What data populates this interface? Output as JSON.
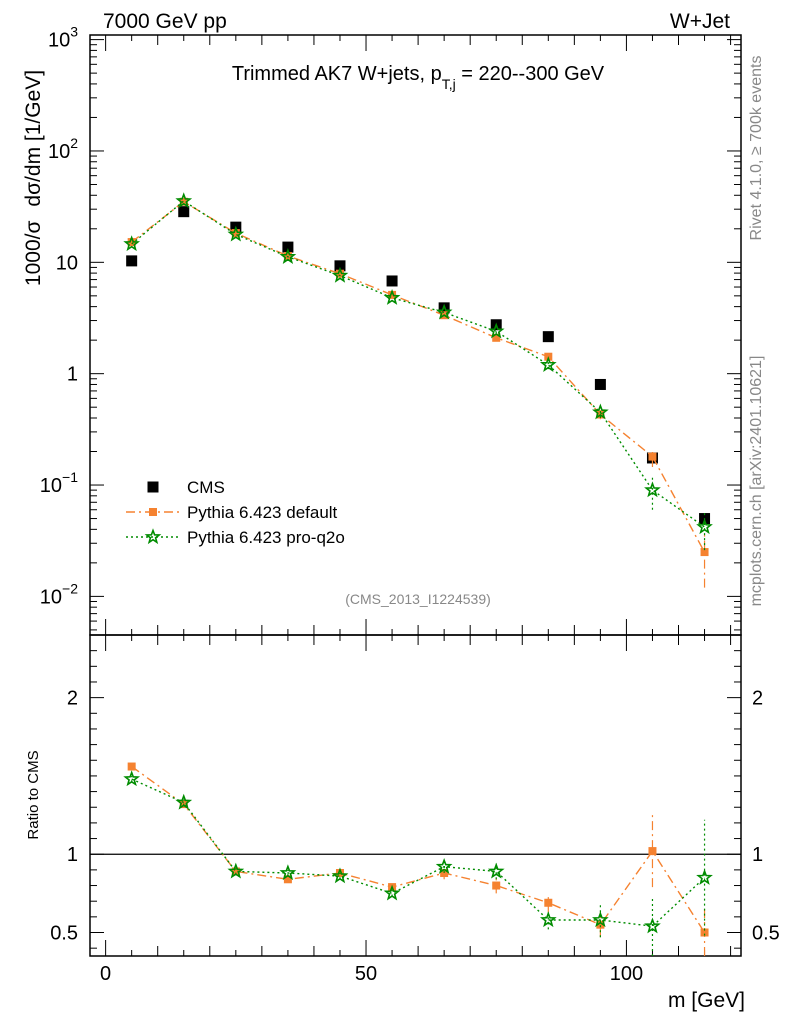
{
  "header": {
    "left": "7000 GeV pp",
    "right": "W+Jet"
  },
  "chart_data": {
    "type": "scatter",
    "title": "Trimmed AK7 W+jets, p",
    "title_sub": "T,j",
    "title_tail": " = 220--300 GeV",
    "analysis_id": "(CMS_2013_I1224539)",
    "side_text_top": "Rivet 4.1.0, ≥ 700k events",
    "side_text_bottom": "mcplots.cern.ch [arXiv:2401.10621]",
    "ylabel": {
      "prefix": "1000/σ",
      "mid": "dσ",
      "suffix": "/dm [1/GeV]"
    },
    "ratio_ylabel": "Ratio to CMS",
    "xlabel": "m [GeV]",
    "xlim": [
      -3,
      122
    ],
    "ylim_main": [
      0.0045,
      1100
    ],
    "ylim_ratio": [
      0.35,
      2.4
    ],
    "main_yticks": [
      {
        "value": 1000,
        "base": "10",
        "exp": "3"
      },
      {
        "value": 100,
        "base": "10",
        "exp": "2"
      },
      {
        "value": 10,
        "base": "10",
        "exp": ""
      },
      {
        "value": 1,
        "base": "1",
        "exp": ""
      },
      {
        "value": 0.1,
        "base": "10",
        "exp": "−1"
      },
      {
        "value": 0.01,
        "base": "10",
        "exp": "−2"
      }
    ],
    "ratio_yticks": [
      {
        "value": 2,
        "label": "2"
      },
      {
        "value": 1,
        "label": "1"
      },
      {
        "value": 0.5,
        "label": "0.5"
      }
    ],
    "xticks": [
      {
        "value": 0,
        "label": "0"
      },
      {
        "value": 50,
        "label": "50"
      },
      {
        "value": 100,
        "label": "100"
      }
    ],
    "x": [
      5,
      15,
      25,
      35,
      45,
      55,
      65,
      75,
      85,
      95,
      105,
      115
    ],
    "series": [
      {
        "name": "CMS",
        "color": "#000000",
        "marker": "square",
        "line": "none",
        "values": [
          10.3,
          28.5,
          20.7,
          13.7,
          9.3,
          6.8,
          3.9,
          2.75,
          2.15,
          0.8,
          0.175,
          0.05
        ],
        "ratio": [
          1,
          1,
          1,
          1,
          1,
          1,
          1,
          1,
          1,
          1,
          1,
          1
        ]
      },
      {
        "name": "Pythia 6.423 default",
        "color": "#f58230",
        "marker": "square",
        "line": "dashdot",
        "values": [
          15.2,
          35,
          18.3,
          11.4,
          7.9,
          5.1,
          3.35,
          2.1,
          1.42,
          0.43,
          0.18,
          0.025
        ],
        "errors": [
          0,
          0,
          0,
          0,
          0,
          0,
          0,
          0.1,
          0.1,
          0.04,
          0.035,
          0.013
        ],
        "ratio": [
          1.56,
          1.32,
          0.89,
          0.84,
          0.88,
          0.79,
          0.88,
          0.8,
          0.69,
          0.55,
          1.02,
          0.5
        ],
        "ratio_errors": [
          0.02,
          0.02,
          0.02,
          0.02,
          0.02,
          0.02,
          0.04,
          0.05,
          0.06,
          0.08,
          0.23,
          0.17
        ]
      },
      {
        "name": "Pythia 6.423 pro-q2o",
        "color": "#008c00",
        "marker": "star",
        "line": "dotted",
        "values": [
          14.6,
          35.5,
          17.8,
          11.2,
          7.6,
          4.8,
          3.55,
          2.4,
          1.2,
          0.45,
          0.09,
          0.042
        ],
        "errors": [
          0,
          0,
          0,
          0,
          0,
          0,
          0,
          0.1,
          0.1,
          0.05,
          0.03,
          0.016
        ],
        "ratio": [
          1.48,
          1.33,
          0.89,
          0.88,
          0.86,
          0.75,
          0.92,
          0.89,
          0.58,
          0.58,
          0.54,
          0.85
        ],
        "ratio_errors": [
          0.02,
          0.02,
          0.02,
          0.02,
          0.02,
          0.02,
          0.04,
          0.05,
          0.06,
          0.11,
          0.19,
          0.37
        ]
      }
    ]
  }
}
